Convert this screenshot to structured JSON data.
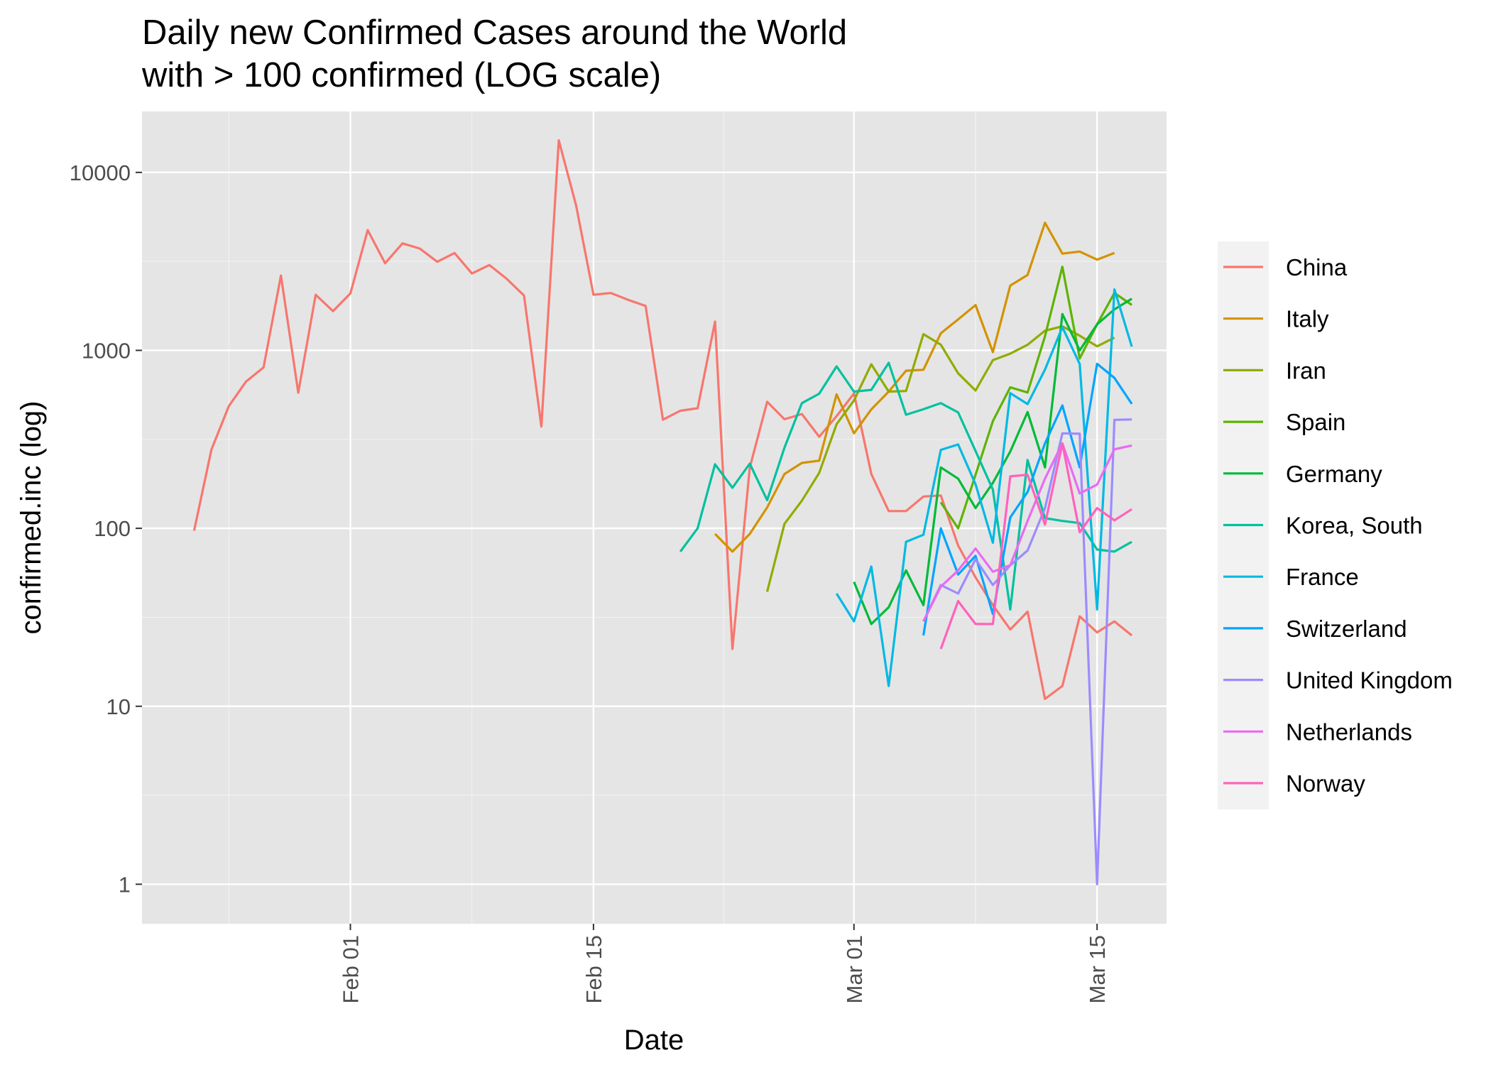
{
  "chart_data": {
    "type": "line",
    "title": "Daily new Confirmed Cases around the World",
    "subtitle": "with > 100 confirmed (LOG scale)",
    "xlabel": "Date",
    "ylabel": "confirmed.inc (log)",
    "y_scale": "log10",
    "ylim": [
      0.6,
      22000
    ],
    "xlim": [
      "2020-01-20",
      "2020-03-19"
    ],
    "x_ticks": [
      {
        "date": "2020-02-01",
        "label": "Feb 01"
      },
      {
        "date": "2020-02-15",
        "label": "Feb 15"
      },
      {
        "date": "2020-03-01",
        "label": "Mar 01"
      },
      {
        "date": "2020-03-15",
        "label": "Mar 15"
      }
    ],
    "y_ticks": [
      {
        "value": 1,
        "label": "1"
      },
      {
        "value": 10,
        "label": "10"
      },
      {
        "value": 100,
        "label": "100"
      },
      {
        "value": 1000,
        "label": "1000"
      },
      {
        "value": 10000,
        "label": "10000"
      }
    ],
    "grid": true,
    "legend_position": "right",
    "background": "#e5e5e5",
    "series": [
      {
        "name": "China",
        "color": "#f8766d",
        "start": "2020-01-23",
        "values": [
          97,
          277,
          486,
          669,
          802,
          2632,
          578,
          2054,
          1661,
          2089,
          4739,
          3086,
          3991,
          3733,
          3147,
          3523,
          2704,
          3015,
          2525,
          2032,
          373,
          15152,
          6526,
          2055,
          2100,
          1921,
          1777,
          408,
          458,
          473,
          1451,
          21,
          219,
          514,
          410,
          439,
          327,
          427,
          573,
          202,
          125,
          125,
          151,
          153,
          80,
          53,
          37,
          27,
          34,
          11,
          13,
          32,
          26,
          30,
          25
        ]
      },
      {
        "name": "Italy",
        "color": "#d39200",
        "start": "2020-02-22",
        "values": [
          93,
          74,
          93,
          131,
          202,
          233,
          240,
          566,
          342,
          466,
          587,
          769,
          778,
          1247,
          1492,
          1797,
          977,
          2313,
          2651,
          5215,
          3497,
          3590,
          3233,
          3526
        ]
      },
      {
        "name": "Iran",
        "color": "#93aa00",
        "start": "2020-02-25",
        "values": [
          44,
          106,
          143,
          205,
          385,
          523,
          835,
          586,
          591,
          1234,
          1076,
          743,
          595,
          881,
          958,
          1075,
          1289,
          1365,
          1209,
          1053,
          1178
        ]
      },
      {
        "name": "Spain",
        "color": "#5eb300",
        "start": "2020-03-06",
        "values": [
          140,
          100,
          200,
          400,
          620,
          580,
          1200,
          2950,
          900,
          1400,
          2100,
          1800
        ]
      },
      {
        "name": "Germany",
        "color": "#00ba38",
        "start": "2020-03-01",
        "values": [
          50,
          29,
          36,
          58,
          37,
          220,
          190,
          130,
          180,
          270,
          450,
          220,
          1600,
          1000,
          1400,
          1700,
          1950
        ]
      },
      {
        "name": "Korea, South",
        "color": "#00c19f",
        "start": "2020-02-20",
        "values": [
          74,
          100,
          229,
          169,
          231,
          144,
          284,
          505,
          571,
          813,
          586,
          600,
          851,
          435,
          467,
          505,
          448,
          272,
          165,
          35,
          242,
          114,
          110,
          107,
          76,
          74,
          84
        ]
      },
      {
        "name": "France",
        "color": "#00b9e3",
        "start": "2020-02-29",
        "values": [
          43,
          30,
          61,
          13,
          84,
          92,
          276,
          296,
          177,
          83,
          575,
          499,
          780,
          1350,
          839,
          35,
          2200,
          1050
        ]
      },
      {
        "name": "Switzerland",
        "color": "#00a5ff",
        "start": "2020-03-05",
        "values": [
          25,
          100,
          55,
          70,
          33,
          115,
          160,
          300,
          490,
          220,
          840,
          700,
          500
        ]
      },
      {
        "name": "United Kingdom",
        "color": "#9b8cff",
        "start": "2020-03-05",
        "values": [
          30,
          48,
          43,
          67,
          48,
          62,
          75,
          130,
          342,
          340,
          1,
          407,
          409
        ]
      },
      {
        "name": "Netherlands",
        "color": "#e76bf3",
        "start": "2020-03-05",
        "values": [
          30,
          47,
          58,
          77,
          57,
          62,
          110,
          190,
          300,
          157,
          176,
          278,
          292
        ]
      },
      {
        "name": "Norway",
        "color": "#ff62bc",
        "start": "2020-03-06",
        "values": [
          21,
          39,
          29,
          29,
          196,
          200,
          105,
          300,
          95,
          130,
          111,
          128
        ]
      }
    ]
  }
}
